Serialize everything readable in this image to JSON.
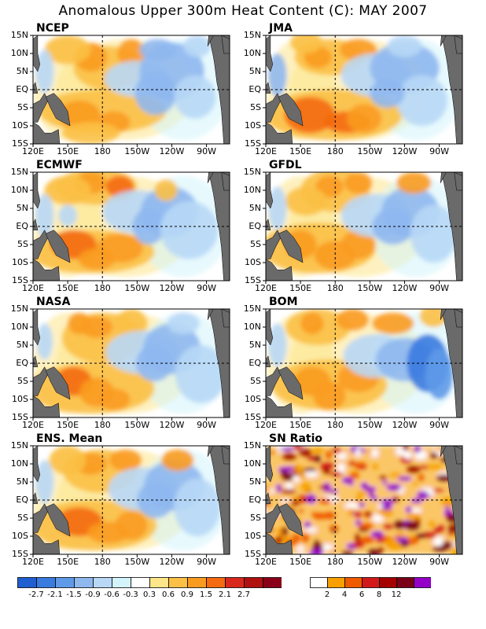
{
  "title": "Anomalous Upper 300m Heat Content (C): MAY 2007",
  "axes": {
    "lat_labels": [
      "15N",
      "10N",
      "5N",
      "EQ",
      "5S",
      "10S",
      "15S"
    ],
    "lon_labels": [
      "120E",
      "150E",
      "180",
      "150W",
      "120W",
      "90W"
    ]
  },
  "colors": {
    "anomaly_scale": [
      "#1f5fd0",
      "#3a7be0",
      "#5f9ae8",
      "#8fb8ef",
      "#b8d8f6",
      "#d4f4fb",
      "#ffffff",
      "#fde58a",
      "#fbc045",
      "#f99b20",
      "#f46a10",
      "#d8281e",
      "#b01010",
      "#8a0018"
    ],
    "sn_scale": [
      "#ffffff",
      "#f7a000",
      "#ee5a00",
      "#d21a1a",
      "#a50000",
      "#7a0018",
      "#9400c8"
    ],
    "land": "#6a6a6a",
    "reference_lines": "#000000"
  },
  "panels": [
    {
      "id": "ncep",
      "label": "NCEP"
    },
    {
      "id": "jma",
      "label": "JMA"
    },
    {
      "id": "ecmwf",
      "label": "ECMWF"
    },
    {
      "id": "gfdl",
      "label": "GFDL"
    },
    {
      "id": "nasa",
      "label": "NASA"
    },
    {
      "id": "bom",
      "label": "BOM"
    },
    {
      "id": "ens",
      "label": "ENS. Mean"
    },
    {
      "id": "sn",
      "label": "SN Ratio"
    }
  ],
  "colorbars": {
    "anomaly": {
      "labels": [
        "-2.7",
        "-2.1",
        "-1.5",
        "-0.9",
        "-0.6",
        "-0.3",
        "0.3",
        "0.6",
        "0.9",
        "1.5",
        "2.1",
        "2.7"
      ]
    },
    "sn_ratio": {
      "labels": [
        "2",
        "4",
        "6",
        "8",
        "12"
      ]
    }
  }
}
